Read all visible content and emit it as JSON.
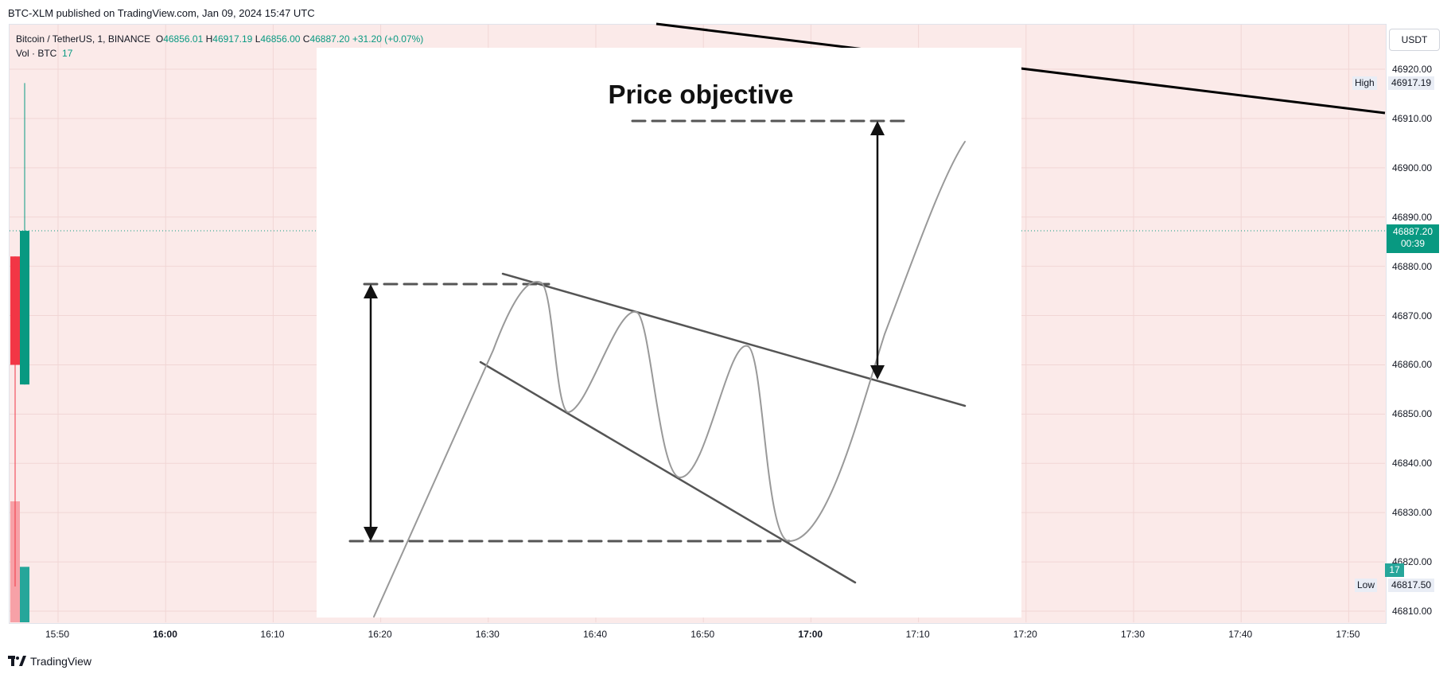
{
  "publish_line": "BTC-XLM published on TradingView.com, Jan 09, 2024 15:47 UTC",
  "legend": {
    "symbol": "Bitcoin / TetherUS, 1, BINANCE",
    "o_label": "O",
    "o_value": "46856.01",
    "h_label": "H",
    "h_value": "46917.19",
    "l_label": "L",
    "l_value": "46856.00",
    "c_label": "C",
    "c_value": "46887.20",
    "change": "+31.20 (+0.07%)",
    "volume_label": "Vol · BTC",
    "volume_value": "17"
  },
  "price_axis": {
    "currency": "USDT",
    "ticks": [
      "46920.00",
      "46910.00",
      "46900.00",
      "46890.00",
      "46880.00",
      "46870.00",
      "46860.00",
      "46850.00",
      "46840.00",
      "46830.00",
      "46820.00",
      "46810.00"
    ],
    "current_price": "46887.20",
    "countdown": "00:39",
    "high_label": "High",
    "high_value": "46917.19",
    "low_label": "Low",
    "low_value": "46817.50",
    "volume_tag": "17"
  },
  "time_axis": {
    "ticks": [
      "15:50",
      "16:00",
      "16:10",
      "16:20",
      "16:30",
      "16:40",
      "16:50",
      "17:00",
      "17:10",
      "17:20",
      "17:30",
      "17:40",
      "17:50"
    ],
    "bold": [
      "16:00",
      "17:00"
    ]
  },
  "overlay": {
    "title": "Price objective"
  },
  "branding": "TradingView",
  "colors": {
    "up": "#089981",
    "down": "#f23645",
    "pane_bg": "#fbeae9",
    "vol_up": "#26a69a",
    "vol_down": "#f7a1a7"
  },
  "chart_data": {
    "type": "candlestick",
    "ylim": [
      46805,
      46928
    ],
    "candles": [
      {
        "open": 46882,
        "high": 46882,
        "low": 46815,
        "close": 46860,
        "direction": "down"
      },
      {
        "open": 46856.01,
        "high": 46917.19,
        "low": 46856.0,
        "close": 46887.2,
        "direction": "up"
      }
    ],
    "volume": [
      {
        "value": 16,
        "direction": "down"
      },
      {
        "value": 17,
        "direction": "up"
      }
    ],
    "current_price": 46887.2
  }
}
